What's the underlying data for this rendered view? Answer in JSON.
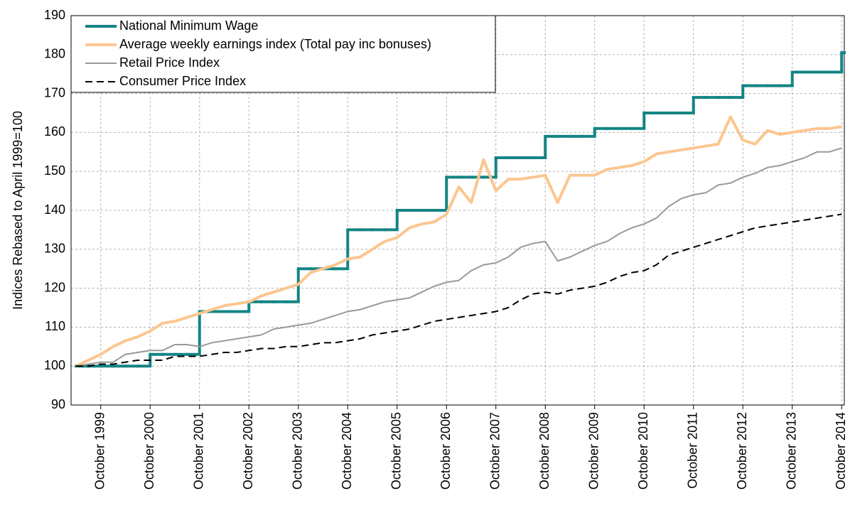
{
  "chart_data": {
    "type": "line",
    "y_label": "Indices Rebased to April 1999=100",
    "categories": [
      null,
      null,
      "October 1999",
      null,
      null,
      null,
      "October 2000",
      null,
      null,
      null,
      "October 2001",
      null,
      null,
      null,
      "October 2002",
      null,
      null,
      null,
      "October 2003",
      null,
      null,
      null,
      "October 2004",
      null,
      null,
      null,
      "October 2005",
      null,
      null,
      null,
      "October 2006",
      null,
      null,
      null,
      "October 2007",
      null,
      null,
      null,
      "October 2008",
      null,
      null,
      null,
      "October 2009",
      null,
      null,
      null,
      "October 2010",
      null,
      null,
      null,
      "October 2011",
      null,
      null,
      null,
      "October 2012",
      null,
      null,
      null,
      "October 2013",
      null,
      null,
      null,
      "October 2014"
    ],
    "series": [
      {
        "name": "National Minimum Wage",
        "color": "#138484",
        "step": "post",
        "line_style": "solid",
        "values": [
          100,
          100,
          100,
          100,
          100,
          100,
          103,
          103,
          103,
          103,
          114,
          114,
          114,
          114,
          116.5,
          116.5,
          116.5,
          116.5,
          125,
          125,
          125,
          125,
          135,
          135,
          135,
          135,
          140,
          140,
          140,
          140,
          148.5,
          148.5,
          148.5,
          148.5,
          153.5,
          153.5,
          153.5,
          153.5,
          159,
          159,
          159,
          159,
          161,
          161,
          161,
          161,
          165,
          165,
          165,
          165,
          169,
          169,
          169,
          169,
          172,
          172,
          172,
          172,
          175.5,
          175.5,
          175.5,
          175.5,
          180.5
        ]
      },
      {
        "name": "Average weekly earnings index (Total pay inc bonuses)",
        "color": "#fcc690",
        "line_style": "solid",
        "values": [
          100,
          101.5,
          103,
          105,
          106.5,
          107.5,
          109,
          111,
          111.5,
          112.5,
          113.5,
          114.5,
          115.5,
          116,
          116.5,
          118,
          119,
          120,
          121,
          124,
          125,
          126,
          127.5,
          128,
          130,
          132,
          133,
          135.5,
          136.5,
          137,
          139,
          146,
          142,
          153,
          145,
          148,
          148,
          148.5,
          149,
          142,
          149,
          149,
          149,
          150.5,
          151,
          151.5,
          152.5,
          154.5,
          155,
          155.5,
          156,
          156.5,
          157,
          164,
          158,
          157,
          160.5,
          159.5,
          160,
          160.5,
          161,
          161,
          161.5
        ]
      },
      {
        "name": "Retail Price Index",
        "color": "#999999",
        "line_style": "solid",
        "values": [
          100,
          100.5,
          101,
          101,
          103,
          103.5,
          104,
          104,
          105.5,
          105.5,
          105,
          106,
          106.5,
          107,
          107.5,
          108,
          109.5,
          110,
          110.5,
          111,
          112,
          113,
          114,
          114.5,
          115.5,
          116.5,
          117,
          117.5,
          119,
          120.5,
          121.5,
          122,
          124.5,
          126,
          126.5,
          128,
          130.5,
          131.5,
          132,
          127,
          128,
          129.5,
          131,
          132,
          134,
          135.5,
          136.5,
          138,
          141,
          143,
          144,
          144.5,
          146.5,
          147,
          148.5,
          149.5,
          151,
          151.5,
          152.5,
          153.5,
          155,
          155,
          156
        ]
      },
      {
        "name": "Consumer Price Index",
        "color": "#000000",
        "line_style": "dashed",
        "values": [
          100,
          100,
          100.5,
          100.5,
          101,
          101.5,
          101.5,
          101.5,
          102.5,
          102.5,
          102.5,
          103,
          103.5,
          103.5,
          104,
          104.5,
          104.5,
          105,
          105,
          105.5,
          106,
          106,
          106.5,
          107,
          108,
          108.5,
          109,
          109.5,
          110.5,
          111.5,
          112,
          112.5,
          113,
          113.5,
          114,
          115,
          117,
          118.5,
          119,
          118.5,
          119.5,
          120,
          120.5,
          121.5,
          123,
          124,
          124.5,
          126,
          128.5,
          129.5,
          130.5,
          131.5,
          132.5,
          133.5,
          134.5,
          135.5,
          136,
          136.5,
          137,
          137.5,
          138,
          138.5,
          139
        ]
      }
    ],
    "ylim": [
      90,
      190
    ],
    "yticks": [
      90,
      100,
      110,
      120,
      130,
      140,
      150,
      160,
      170,
      180,
      190
    ],
    "grid": true,
    "legend": "upper left"
  }
}
